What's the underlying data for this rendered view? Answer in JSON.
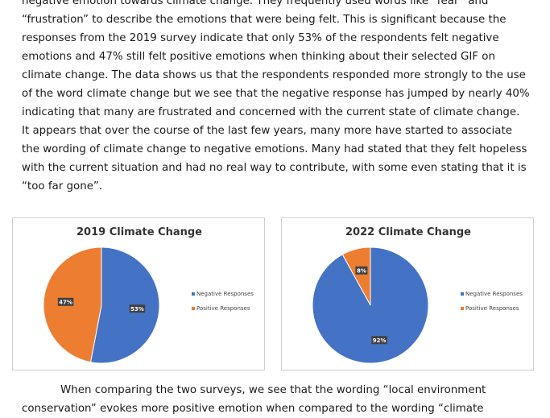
{
  "top_paragraph": [
    "negative emotion towards climate change. They frequently used words like “fear” and",
    "“frustration” to describe the emotions that were being felt. This is significant because the",
    "responses from the 2019 survey indicate that only 53% of the respondents felt negative",
    "emotions and 47% still felt positive emotions when thinking about their selected GIF on",
    "climate change. The data shows us that the respondents responded more strongly to the use",
    "of the word climate change but we see that the negative response has jumped by nearly 40%",
    "indicating that many are frustrated and concerned with the current state of climate change.",
    "It appears that over the course of the last few years, many more have started to associate",
    "the wording of climate change to negative emotions. Many had stated that they felt hopeless",
    "with the current situation and had no real way to contribute, with some even stating that it is",
    "“too far gone”."
  ],
  "bottom_paragraph": [
    "When comparing the two surveys, we see that the wording “local environment",
    "conservation” evokes more positive emotion when compared to the wording “climate"
  ],
  "colors": {
    "negative": "#4472C4",
    "positive": "#ED7D31"
  },
  "chart_data": [
    {
      "type": "pie",
      "title": "2019 Climate Change",
      "categories": [
        "Negative Responses",
        "Positive Responses"
      ],
      "values": [
        53,
        47
      ],
      "labels": [
        "53%",
        "47%"
      ],
      "legend_position": "right"
    },
    {
      "type": "pie",
      "title": "2022 Climate Change",
      "categories": [
        "Negative Responses",
        "Positive Responses"
      ],
      "values": [
        92,
        8
      ],
      "labels": [
        "92%",
        "8%"
      ],
      "legend_position": "right"
    }
  ]
}
